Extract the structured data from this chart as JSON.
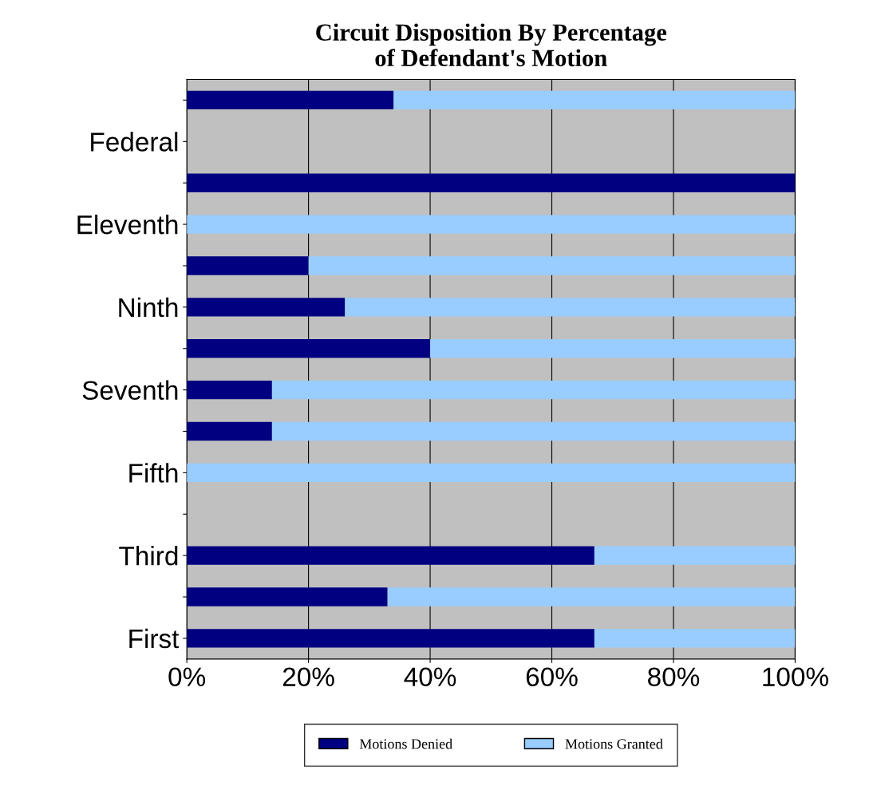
{
  "chart_data": {
    "type": "bar",
    "orientation": "horizontal",
    "stacked": true,
    "title": "Circuit Disposition By Percentage\nof Defendant's Motion",
    "categories": [
      null,
      "Federal",
      null,
      "Eleventh",
      null,
      "Ninth",
      null,
      "Seventh",
      null,
      "Fifth",
      null,
      "Third",
      null,
      "First"
    ],
    "series": [
      {
        "name": "Motions Denied",
        "color": "#000080",
        "values": [
          34,
          0,
          100,
          0,
          20,
          26,
          40,
          14,
          14,
          0,
          0,
          67,
          33,
          67
        ]
      },
      {
        "name": "Motions Granted",
        "color": "#99ccff",
        "values": [
          66,
          0,
          0,
          100,
          80,
          74,
          60,
          86,
          86,
          100,
          0,
          33,
          67,
          33
        ]
      }
    ],
    "xlim": [
      0,
      100
    ],
    "xticks": [
      {
        "value": 0,
        "label": "0%"
      },
      {
        "value": 20,
        "label": "20%"
      },
      {
        "value": 40,
        "label": "40%"
      },
      {
        "value": 60,
        "label": "60%"
      },
      {
        "value": 80,
        "label": "80%"
      },
      {
        "value": 100,
        "label": "100%"
      }
    ],
    "grid": "x",
    "legend": "bottom"
  }
}
